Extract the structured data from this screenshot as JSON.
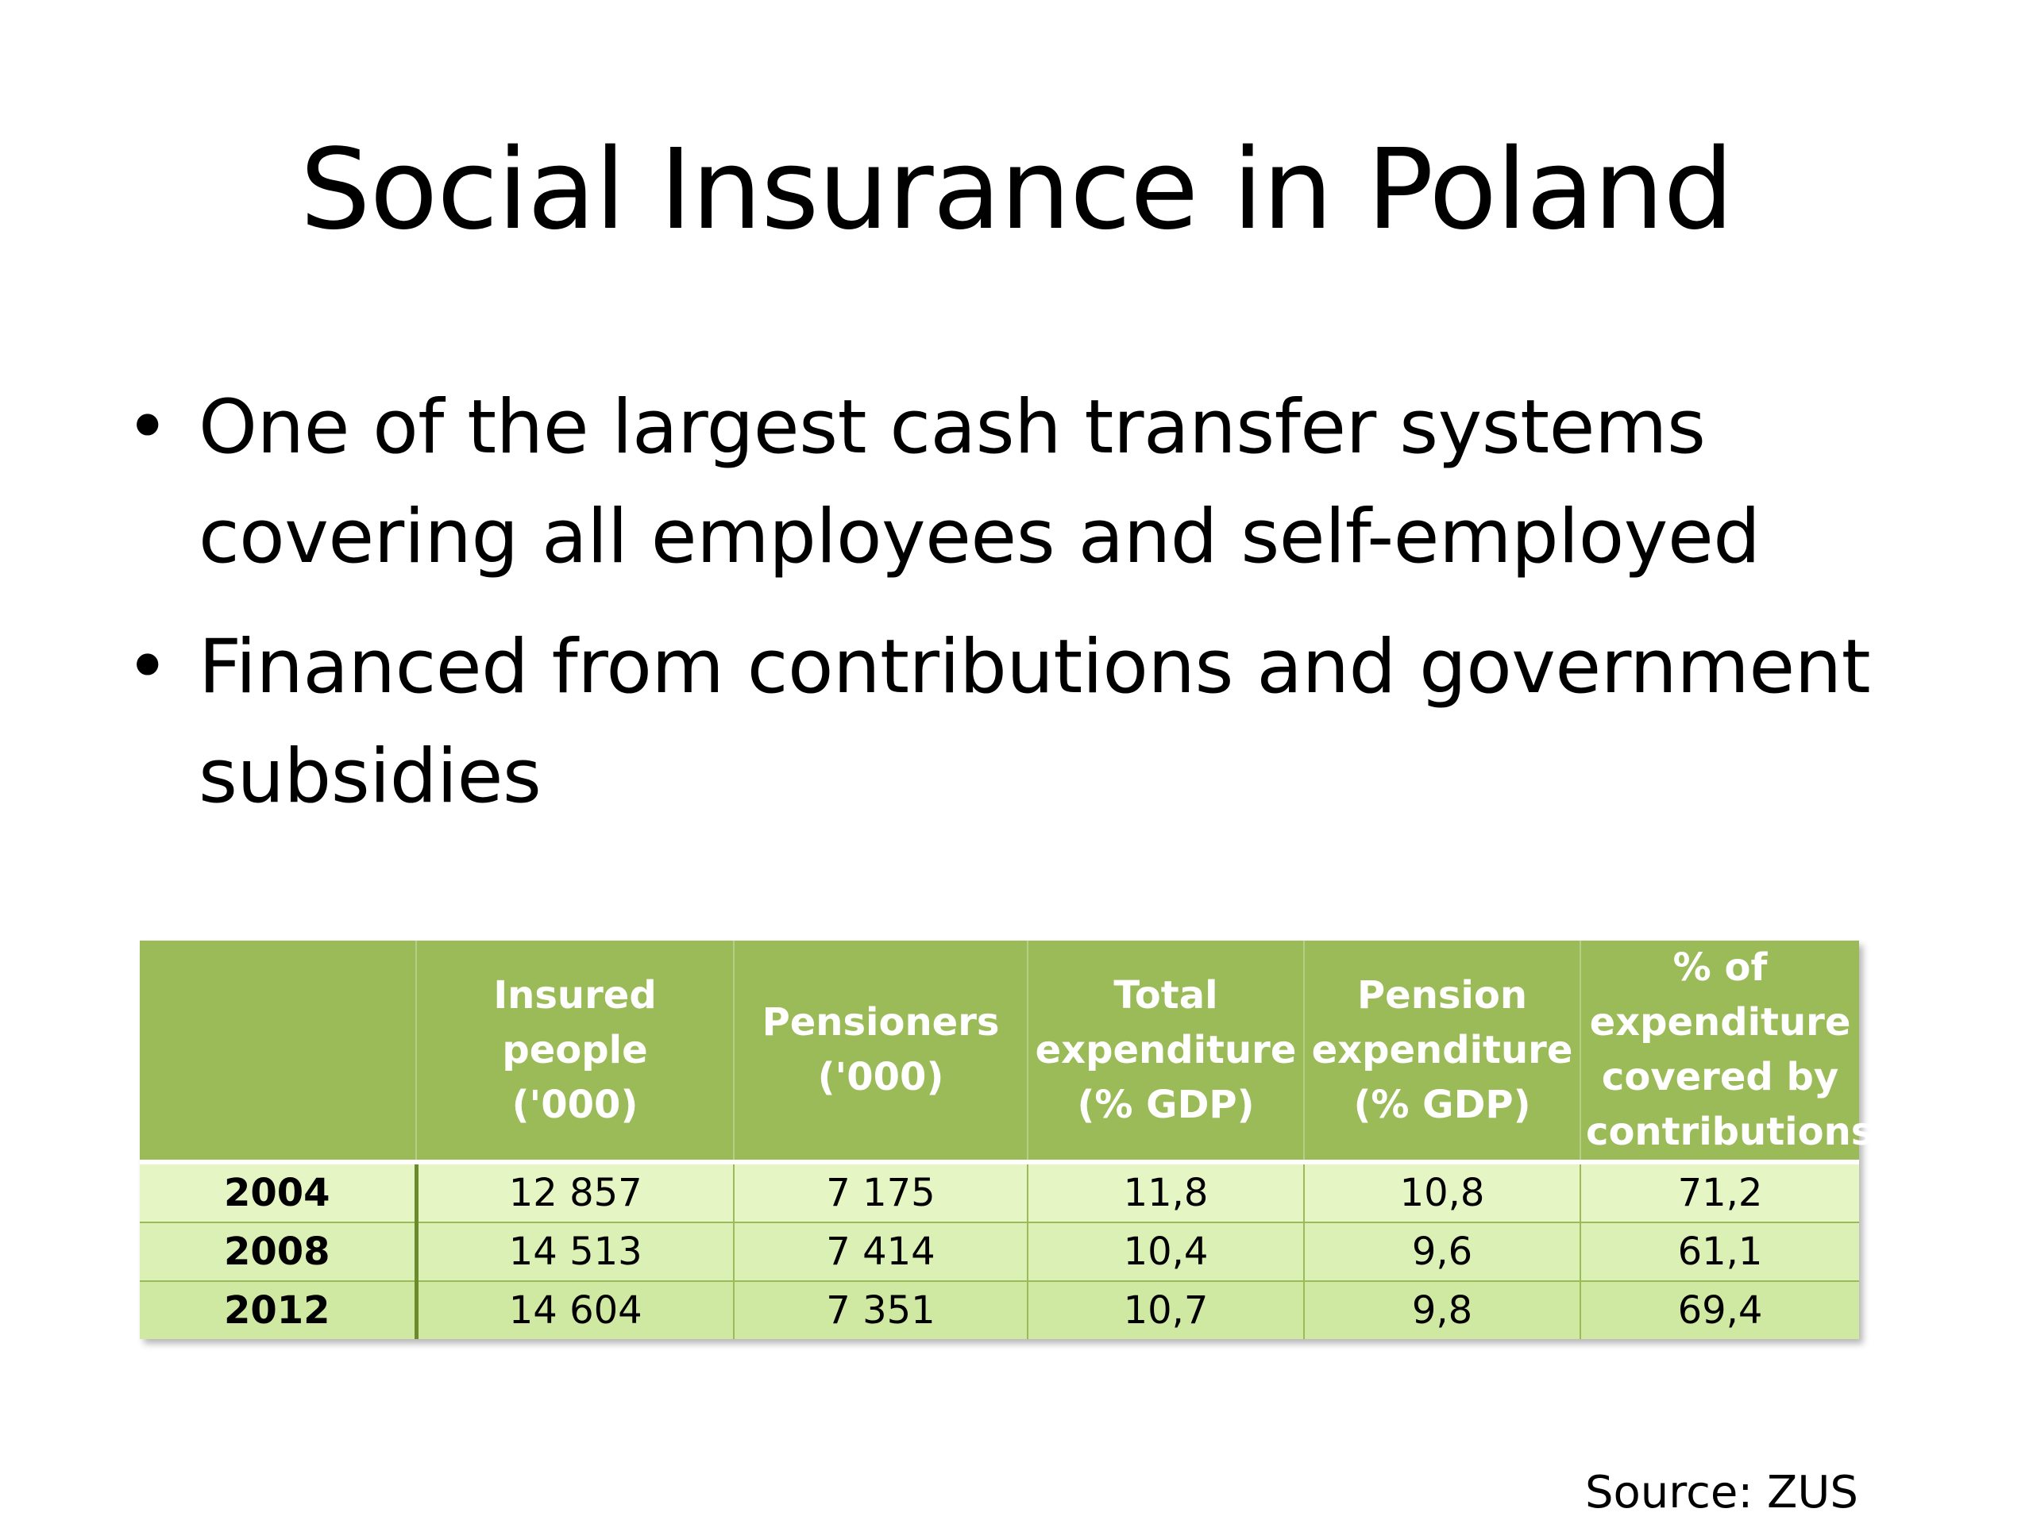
{
  "slide": {
    "title": "Social Insurance in Poland",
    "bullets": [
      {
        "lines": [
          "One of the largest cash transfer systems",
          "covering all employees and self-employed"
        ]
      },
      {
        "lines": [
          "Financed from contributions and government",
          "subsidies"
        ]
      }
    ],
    "bullet_glyph": "•",
    "source": "Source: ZUS"
  },
  "table": {
    "header_color": "#9bbb59",
    "headers": [
      {
        "lines": []
      },
      {
        "lines": [
          "Insured people",
          "('000)"
        ]
      },
      {
        "lines": [
          "Pensioners",
          "('000)"
        ]
      },
      {
        "lines": [
          "Total",
          "expenditure",
          "(% GDP)"
        ]
      },
      {
        "lines": [
          "Pension",
          "expenditure",
          "(% GDP)"
        ]
      },
      {
        "lines": [
          "% of",
          "expenditure",
          "covered by",
          "contributions"
        ]
      }
    ],
    "rows": [
      [
        "2004",
        "12 857",
        "7 175",
        "11,8",
        "10,8",
        "71,2"
      ],
      [
        "2008",
        "14 513",
        "7 414",
        "10,4",
        "9,6",
        "61,1"
      ],
      [
        "2012",
        "14 604",
        "7 351",
        "10,7",
        "9,8",
        "69,4"
      ]
    ]
  }
}
